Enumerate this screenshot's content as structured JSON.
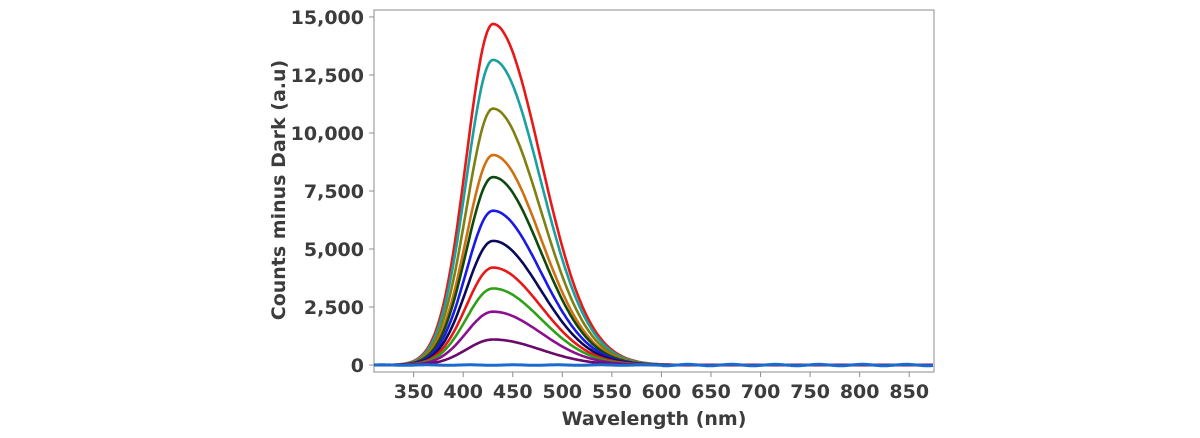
{
  "chart_data": {
    "type": "line",
    "xlabel": "Wavelength (nm)",
    "ylabel": "Counts minus Dark (a.u)",
    "xlim": [
      310,
      875
    ],
    "ylim": [
      -300,
      15300
    ],
    "xticks": [
      350,
      400,
      450,
      500,
      550,
      600,
      650,
      700,
      750,
      800,
      850
    ],
    "xtick_labels": [
      "350",
      "400",
      "450",
      "500",
      "550",
      "600",
      "650",
      "700",
      "750",
      "800",
      "850"
    ],
    "yticks": [
      0,
      2500,
      5000,
      7500,
      10000,
      12500,
      15000
    ],
    "ytick_labels": [
      "0",
      "2,500",
      "5,000",
      "7,500",
      "10,000",
      "12,500",
      "15,000"
    ],
    "grid": false,
    "legend": "none",
    "peak_wavelength": 430,
    "series": [
      {
        "color": "#e81818",
        "peak": 14700
      },
      {
        "color": "#1aa0a0",
        "peak": 13150
      },
      {
        "color": "#808012",
        "peak": 11050
      },
      {
        "color": "#d07010",
        "peak": 9050
      },
      {
        "color": "#0e4a0e",
        "peak": 8100
      },
      {
        "color": "#1a1ae8",
        "peak": 6650
      },
      {
        "color": "#0a0a5a",
        "peak": 5350
      },
      {
        "color": "#e81818",
        "peak": 4200
      },
      {
        "color": "#30a018",
        "peak": 3300
      },
      {
        "color": "#8a1090",
        "peak": 2300
      },
      {
        "color": "#6a0a6a",
        "peak": 1100
      },
      {
        "color": "#1a6ad0",
        "peak": 0
      }
    ]
  }
}
